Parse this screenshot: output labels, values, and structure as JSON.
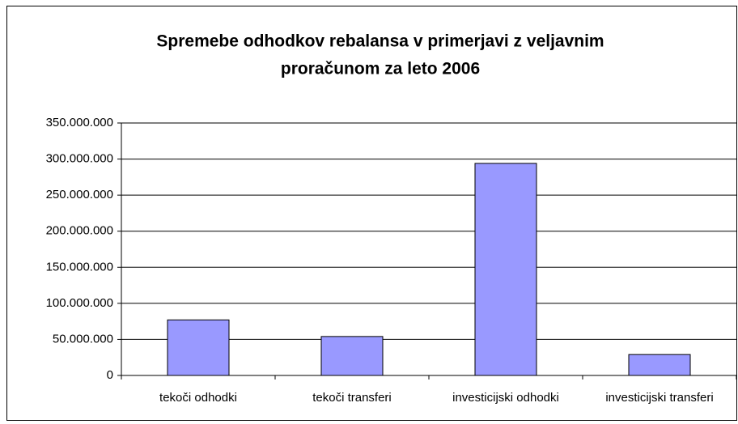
{
  "chart_data": {
    "type": "bar",
    "title": [
      "Spremebe odhodkov rebalansa v primerjavi z veljavnim",
      "proračunom za leto 2006"
    ],
    "categories": [
      "tekoči odhodki",
      "tekoči transferi",
      "investicijski odhodki",
      "investicijski transferi"
    ],
    "values": [
      77000000,
      54000000,
      294000000,
      29000000
    ],
    "color": "#9999ff",
    "ylim": [
      0,
      350000000
    ],
    "yticks": [
      0,
      {
        "value": 50000000,
        "label": "50.000.000"
      },
      {
        "value": 100000000,
        "label": "100.000.000"
      },
      {
        "value": 150000000,
        "label": "150.000.000"
      },
      {
        "value": 200000000,
        "label": "200.000.000"
      },
      {
        "value": 250000000,
        "label": "250.000.000"
      },
      {
        "value": 300000000,
        "label": "300.000.000"
      },
      {
        "value": 350000000,
        "label": "350.000.000"
      }
    ],
    "grid": true
  }
}
